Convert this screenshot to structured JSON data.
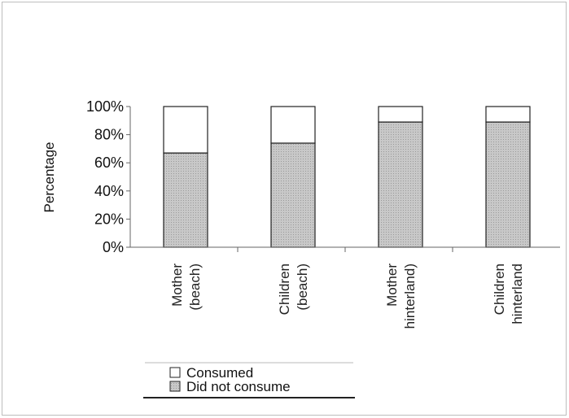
{
  "chart_data": {
    "type": "bar",
    "stacked": true,
    "percent": true,
    "title": "",
    "xlabel": "",
    "ylabel": "Percentage",
    "ylim": [
      0,
      100
    ],
    "yticks": [
      "0%",
      "20%",
      "40%",
      "60%",
      "80%",
      "100%"
    ],
    "categories": [
      [
        "Mother",
        "(beach)"
      ],
      [
        "Children",
        "(beach)"
      ],
      [
        "Mother",
        "hinterland)"
      ],
      [
        "Children",
        "hinterland"
      ]
    ],
    "series": [
      {
        "name": "Did not consume",
        "values": [
          67,
          74,
          89,
          89
        ]
      },
      {
        "name": "Consumed",
        "values": [
          33,
          26,
          11,
          11
        ]
      }
    ],
    "legend": {
      "position": "bottom",
      "entries": [
        "Consumed",
        "Did not consume"
      ]
    },
    "colors": {
      "did_not_consume": "#c8c8c8",
      "consumed": "#ffffff",
      "stroke": "#222222"
    },
    "grid": false
  }
}
